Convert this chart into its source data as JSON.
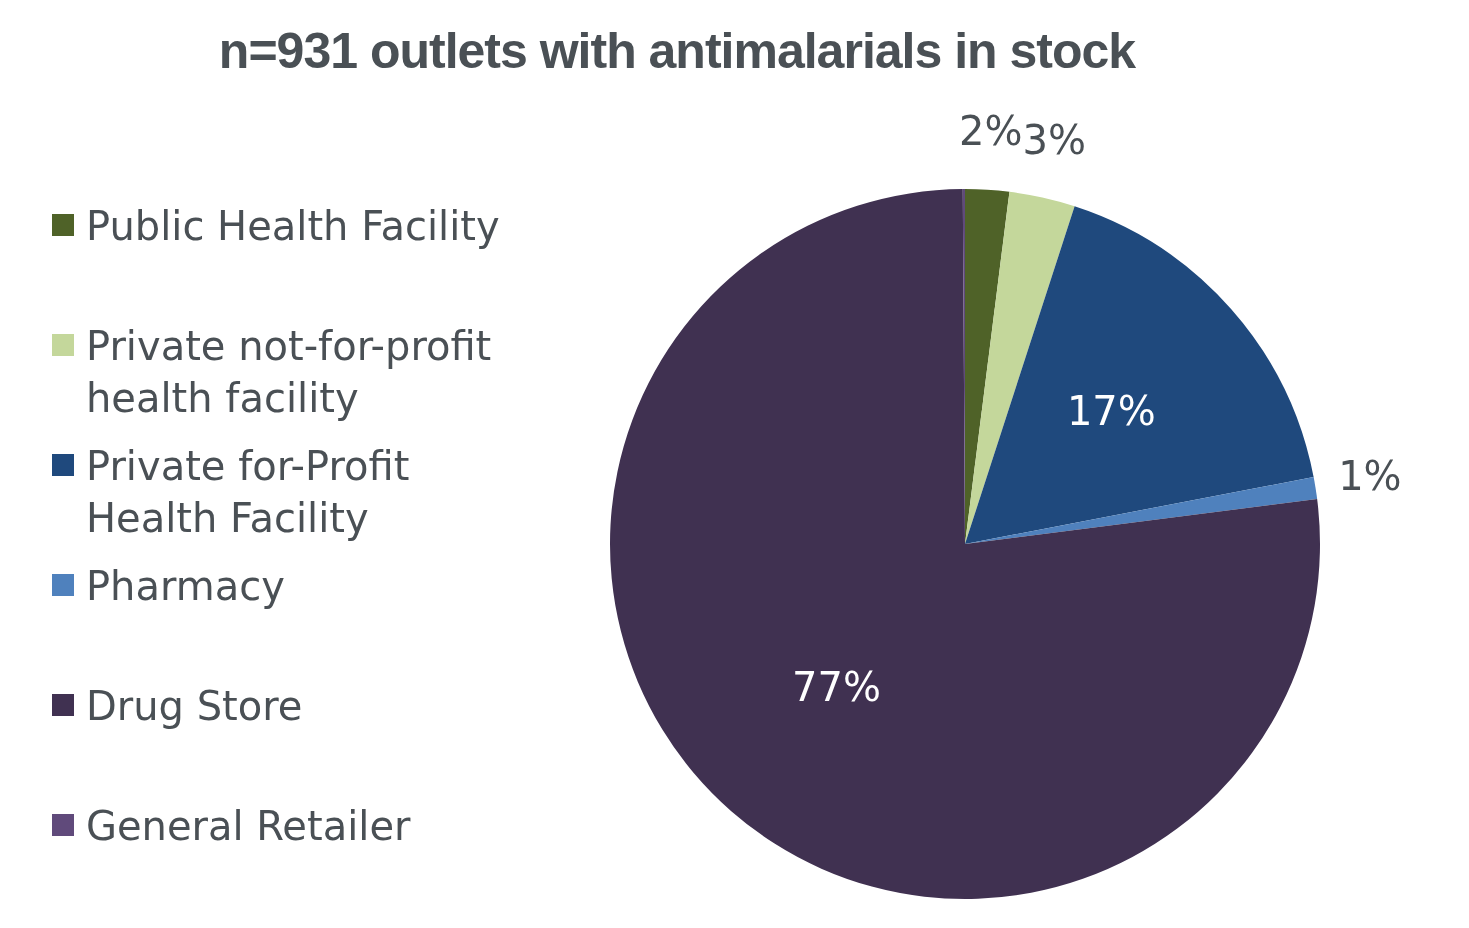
{
  "chart_data": {
    "type": "pie",
    "title": "n=931 outlets with antimalarials in stock",
    "categories": [
      "Public Health Facility",
      "Private not-for-profit health facility",
      "Private for-Profit Health Facility",
      "Pharmacy",
      "Drug Store",
      "General Retailer"
    ],
    "values": [
      2,
      3,
      17,
      1,
      77,
      0.1
    ],
    "value_labels": [
      "2%",
      "3%",
      "17%",
      "1%",
      "77%",
      null
    ],
    "colors": [
      "#4f6228",
      "#c4d79b",
      "#1f497d",
      "#4f81bd",
      "#403151",
      "#604a7b"
    ],
    "legend": "left"
  }
}
